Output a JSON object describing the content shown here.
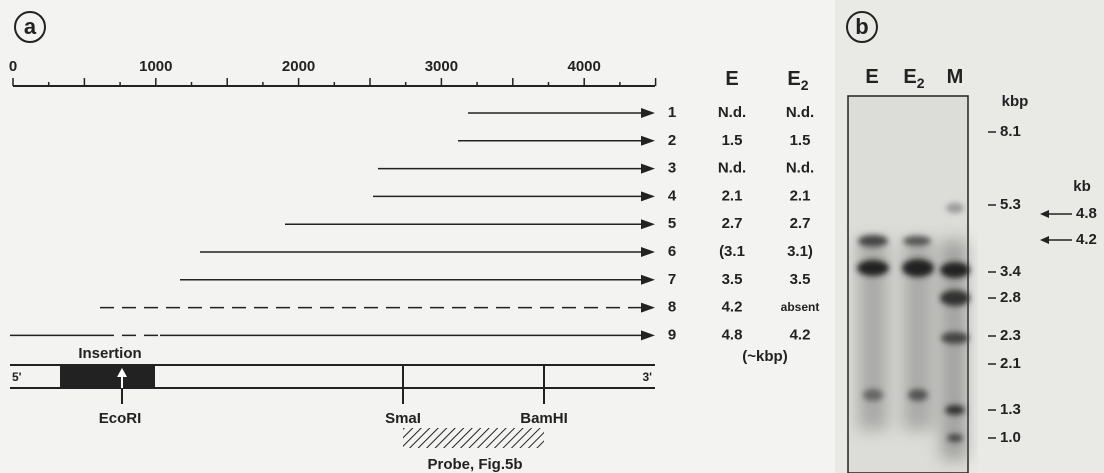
{
  "panel_a": {
    "label": "a",
    "scale_ticks": [
      0,
      1000,
      2000,
      3000,
      4000
    ],
    "column_headers": [
      {
        "text": "E"
      },
      {
        "text": "E",
        "subscript": "2"
      }
    ],
    "rows": [
      {
        "number": 1,
        "E": "N.d.",
        "E2": "N.d."
      },
      {
        "number": 2,
        "E": 1.5,
        "E2": 1.5
      },
      {
        "number": 3,
        "E": "N.d.",
        "E2": "N.d."
      },
      {
        "number": 4,
        "E": 2.1,
        "E2": 2.1
      },
      {
        "number": 5,
        "E": 2.7,
        "E2": 2.7
      },
      {
        "number": 6,
        "E": "(3.1",
        "E2": "3.1)"
      },
      {
        "number": 7,
        "E": 3.5,
        "E2": 3.5
      },
      {
        "number": 8,
        "E": 4.2,
        "E2": "absent"
      },
      {
        "number": 9,
        "E": 4.8,
        "E2": 4.2
      }
    ],
    "unit_note": "(~kbp)",
    "map": {
      "insertion": "Insertion",
      "five_prime": "5'",
      "three_prime": "3'",
      "sites": [
        "EcoRI",
        "SmaI",
        "BamHI"
      ],
      "probe": "Probe, Fig.5b"
    }
  },
  "panel_b": {
    "label": "b",
    "lanes": [
      {
        "text": "E"
      },
      {
        "text": "E",
        "subscript": "2"
      },
      {
        "text": "M"
      }
    ],
    "marker_unit": "kbp",
    "markers": [
      "8.1",
      "5.3",
      "3.4",
      "2.8",
      "2.3",
      "2.1",
      "1.3",
      "1.0"
    ],
    "band_unit": "kb",
    "bands": [
      "4.8",
      "4.2"
    ]
  }
}
